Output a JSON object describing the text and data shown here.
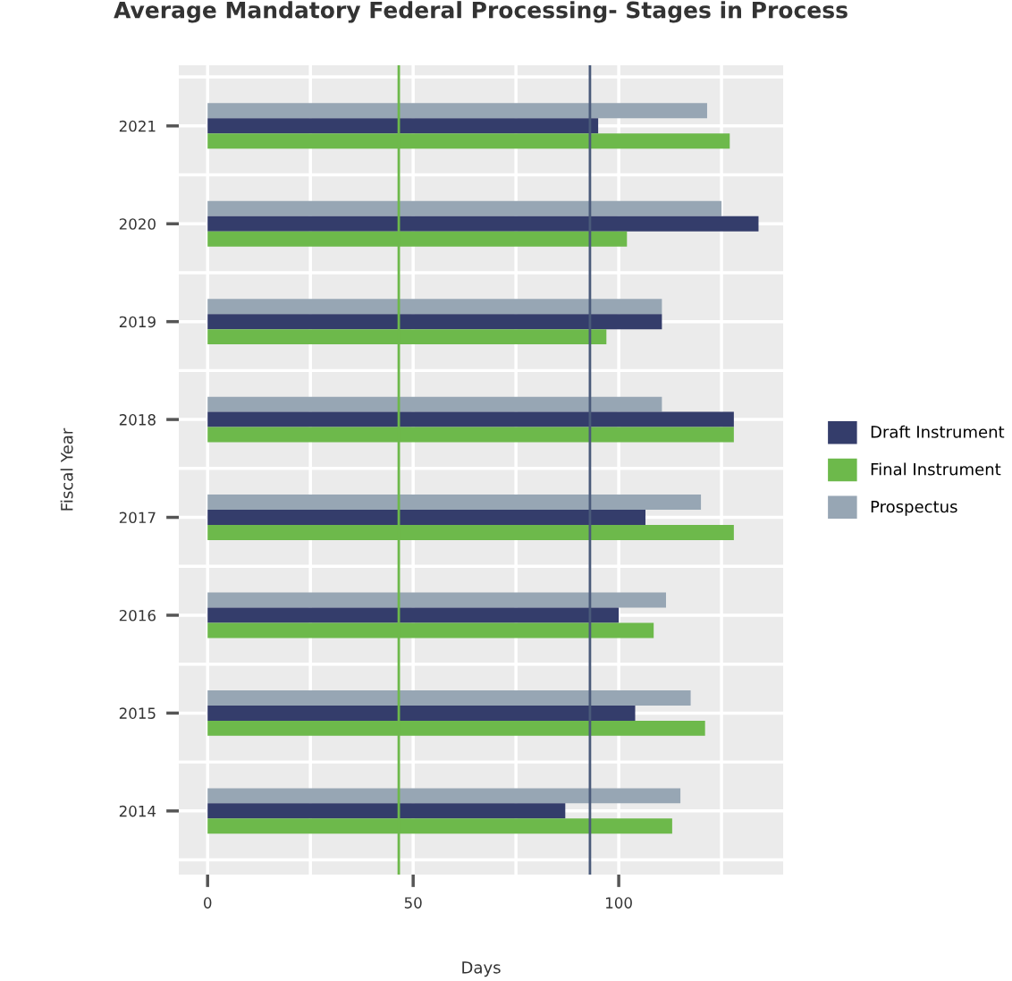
{
  "chart_data": {
    "type": "bar",
    "orientation": "horizontal",
    "title": "Average Mandatory Federal Processing- Stages in Process",
    "xlabel": "Days",
    "ylabel": "Fiscal Year",
    "categories": [
      "2021",
      "2020",
      "2019",
      "2018",
      "2017",
      "2016",
      "2015",
      "2014"
    ],
    "series": [
      {
        "name": "Prospectus",
        "color": "#97a6b4",
        "values": [
          121.5,
          125,
          110.5,
          110.5,
          120,
          111.5,
          117.5,
          115
        ]
      },
      {
        "name": "Draft Instrument",
        "color": "#343d6b",
        "values": [
          95,
          134,
          110.5,
          128,
          106.5,
          100,
          104,
          87
        ]
      },
      {
        "name": "Final Instrument",
        "color": "#6db94b",
        "values": [
          127,
          102,
          97,
          128,
          128,
          108.5,
          121,
          113
        ]
      }
    ],
    "xlim": [
      -7,
      140
    ],
    "xticks": [
      0,
      {
        "value": 25,
        "label": null
      },
      50,
      {
        "value": 75,
        "label": null
      },
      100,
      {
        "value": 125,
        "label": null
      }
    ],
    "ref_lines": [
      {
        "axis": "x",
        "value": 46.5,
        "color": "#6db94b"
      },
      {
        "axis": "x",
        "value": 93,
        "color": "#4a5a7a"
      }
    ],
    "grid": true,
    "legend": "right"
  }
}
